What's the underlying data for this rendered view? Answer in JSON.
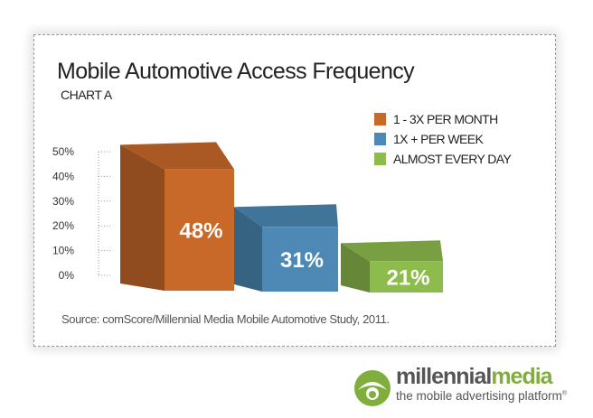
{
  "chart_data": {
    "type": "bar",
    "title": "Mobile Automotive Access Frequency",
    "subtitle": "CHART A",
    "categories": [
      "1 - 3X PER MONTH",
      "1X + PER WEEK",
      "ALMOST EVERY DAY"
    ],
    "series": [
      {
        "name": "1 - 3X PER MONTH",
        "value": 48,
        "label": "48%",
        "color": "#c8692a"
      },
      {
        "name": "1X + PER WEEK",
        "value": 31,
        "label": "31%",
        "color": "#4d89b4"
      },
      {
        "name": "ALMOST EVERY DAY",
        "value": 21,
        "label": "21%",
        "color": "#8dbb4c"
      }
    ],
    "yticks": [
      "50%",
      "40%",
      "30%",
      "20%",
      "10%",
      "0%"
    ],
    "ylim": [
      0,
      50
    ],
    "legend_position": "top-right",
    "style": "3d-boxes",
    "source": "Source: comScore/Millennial Media Mobile Automotive Study, 2011."
  },
  "logo": {
    "brand_a": "millennial",
    "brand_b": "media",
    "tagline": "the mobile advertising platform",
    "mark": "®"
  }
}
